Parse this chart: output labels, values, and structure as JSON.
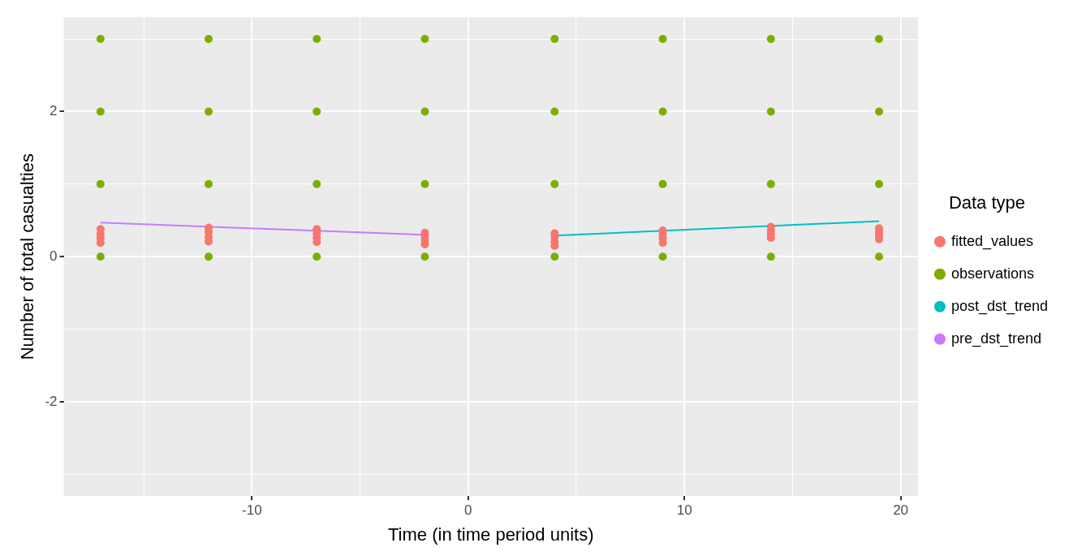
{
  "chart_data": {
    "type": "scatter",
    "xlabel": "Time (in time period units)",
    "ylabel": "Number of total casualties",
    "legend_title": "Data type",
    "legend": "right",
    "grid": true,
    "marker": "circle",
    "xlim": [
      -18.7,
      20.8
    ],
    "xticks": [
      {
        "value": -15,
        "label": null
      },
      -10,
      {
        "value": -5,
        "label": null
      },
      0,
      {
        "value": 5,
        "label": null
      },
      10,
      {
        "value": 15,
        "label": null
      },
      20
    ],
    "ylim": [
      -3.3,
      3.3
    ],
    "yticks": [
      {
        "value": -3,
        "label": null
      },
      -2,
      {
        "value": -1,
        "label": null
      },
      0,
      {
        "value": 1,
        "label": null
      },
      2,
      {
        "value": 3,
        "label": null
      }
    ],
    "series": [
      {
        "name": "fitted_values",
        "color": "#f8766d",
        "x": [
          -17,
          -17,
          -17,
          -17,
          -12,
          -12,
          -12,
          -12,
          -7,
          -7,
          -7,
          -7,
          -2,
          -2,
          -2,
          -2,
          4,
          4,
          4,
          4,
          9,
          9,
          9,
          9,
          14,
          14,
          14,
          14,
          19,
          19,
          19,
          19
        ],
        "values": [
          0.19,
          0.25,
          0.31,
          0.38,
          0.21,
          0.27,
          0.34,
          0.4,
          0.2,
          0.26,
          0.32,
          0.38,
          0.17,
          0.22,
          0.28,
          0.33,
          0.15,
          0.21,
          0.27,
          0.32,
          0.19,
          0.25,
          0.31,
          0.36,
          0.26,
          0.31,
          0.36,
          0.41,
          0.24,
          0.29,
          0.34,
          0.39
        ]
      },
      {
        "name": "observations",
        "color": "#7cae00",
        "x": [
          -17,
          -17,
          -17,
          -17,
          -12,
          -12,
          -12,
          -12,
          -7,
          -7,
          -7,
          -7,
          -2,
          -2,
          -2,
          -2,
          4,
          4,
          4,
          4,
          9,
          9,
          9,
          9,
          14,
          14,
          14,
          14,
          19,
          19,
          19,
          19
        ],
        "values": [
          0,
          1,
          2,
          3,
          0,
          1,
          2,
          3,
          0,
          1,
          2,
          3,
          0,
          1,
          2,
          3,
          0,
          1,
          2,
          3,
          0,
          1,
          2,
          3,
          0,
          1,
          2,
          3,
          0,
          1,
          2,
          3
        ]
      },
      {
        "name": "post_dst_trend",
        "color": "#00bfc4",
        "type": "line",
        "marker": "none",
        "x": [
          4,
          19
        ],
        "values": [
          0.29,
          0.49
        ]
      },
      {
        "name": "pre_dst_trend",
        "color": "#c77cff",
        "type": "line",
        "marker": "none",
        "x": [
          -17,
          -2
        ],
        "values": [
          0.47,
          0.3
        ]
      }
    ]
  }
}
